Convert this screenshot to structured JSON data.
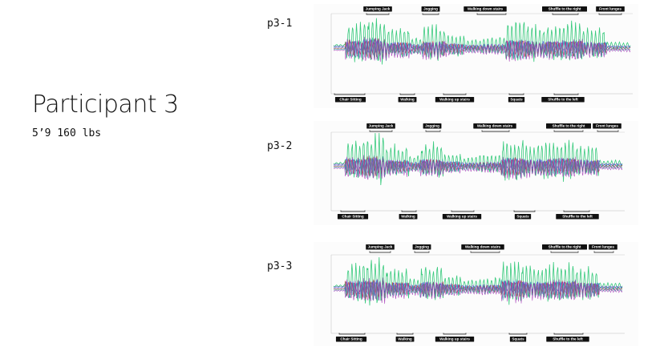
{
  "participant": {
    "title": "Participant 3",
    "stats": "5’9 160 lbs"
  },
  "colors": {
    "series": [
      "#21c46e",
      "#6f2fc2",
      "#2f6fe0",
      "#c2332f",
      "#24a6a0",
      "#a12fb3"
    ],
    "label_bg": "#111111",
    "label_text": "#ffffff"
  },
  "chart_data": [
    {
      "name": "p3-1",
      "type": "line",
      "activities": [
        {
          "label": "Jumping Jack",
          "pos": "top"
        },
        {
          "label": "Jogging",
          "pos": "top"
        },
        {
          "label": "Walking down stairs",
          "pos": "top"
        },
        {
          "label": "Shuffle to the right",
          "pos": "top"
        },
        {
          "label": "Front lunges",
          "pos": "top"
        },
        {
          "label": "Chair Sitting",
          "pos": "bottom"
        },
        {
          "label": "Walking",
          "pos": "bottom"
        },
        {
          "label": "Walking up stairs",
          "pos": "bottom"
        },
        {
          "label": "Squats",
          "pos": "bottom"
        },
        {
          "label": "Shuffle to the left",
          "pos": "bottom"
        }
      ]
    },
    {
      "name": "p3-2",
      "type": "line",
      "activities": [
        {
          "label": "Jumping Jack",
          "pos": "top"
        },
        {
          "label": "Jogging",
          "pos": "top"
        },
        {
          "label": "Walking down stairs",
          "pos": "top"
        },
        {
          "label": "Shuffle to the right",
          "pos": "top"
        },
        {
          "label": "Front lunges",
          "pos": "top"
        },
        {
          "label": "Chair Sitting",
          "pos": "bottom"
        },
        {
          "label": "Walking",
          "pos": "bottom"
        },
        {
          "label": "Walking up stairs",
          "pos": "bottom"
        },
        {
          "label": "Squats",
          "pos": "bottom"
        },
        {
          "label": "Shuffle to the left",
          "pos": "bottom"
        }
      ]
    },
    {
      "name": "p3-3",
      "type": "line",
      "activities": [
        {
          "label": "Jumping Jack",
          "pos": "top"
        },
        {
          "label": "Jogging",
          "pos": "top"
        },
        {
          "label": "Walking down stairs",
          "pos": "top"
        },
        {
          "label": "Shuffle to the right",
          "pos": "top"
        },
        {
          "label": "Front lunges",
          "pos": "top"
        },
        {
          "label": "Chair Sitting",
          "pos": "bottom"
        },
        {
          "label": "Walking",
          "pos": "bottom"
        },
        {
          "label": "Walking up stairs",
          "pos": "bottom"
        },
        {
          "label": "Squats",
          "pos": "bottom"
        },
        {
          "label": "Shuffle to the left",
          "pos": "bottom"
        }
      ]
    }
  ]
}
